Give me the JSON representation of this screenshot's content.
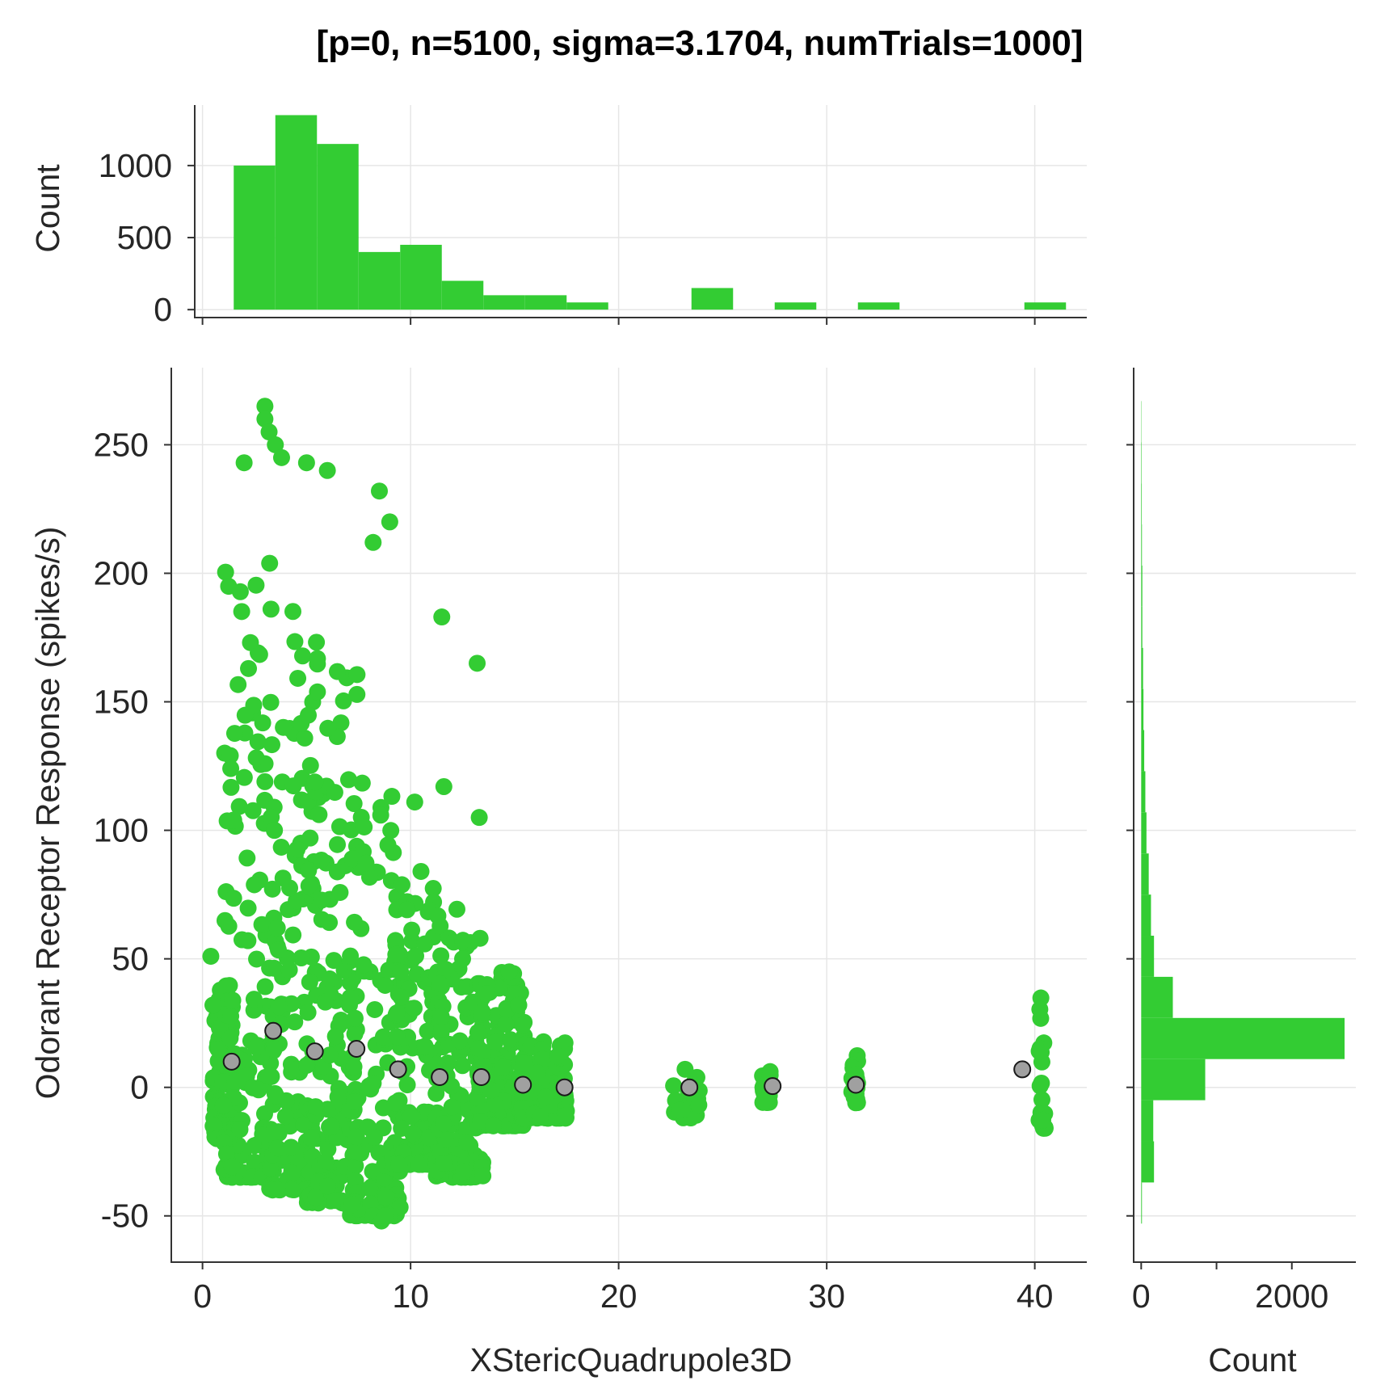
{
  "chart_data": {
    "type": "scatter",
    "title": "[p=0, n=5100, sigma=3.1704, numTrials=1000]",
    "xlabel": "XStericQuadrupole3D",
    "ylabel": "Odorant Receptor Response (spikes/s)",
    "xlim": [
      -1.5,
      42.5
    ],
    "ylim": [
      -68,
      280
    ],
    "xticks": [
      0,
      10,
      20,
      30,
      40
    ],
    "yticks": [
      -50,
      0,
      50,
      100,
      150,
      200,
      250
    ],
    "grid": true,
    "scatter_color": "#33cc33",
    "mean_marker_color": "#a0a0a0",
    "bin_means": {
      "x": [
        1.4,
        3.4,
        5.4,
        7.4,
        9.4,
        11.4,
        13.4,
        15.4,
        17.4,
        23.4,
        27.4,
        31.4,
        39.4
      ],
      "y": [
        10,
        22,
        14,
        15,
        7,
        4,
        4,
        1,
        0,
        0,
        0.5,
        1,
        7
      ]
    },
    "outliers": {
      "x": [
        3.0,
        3.0,
        3.2,
        3.5,
        3.8,
        2.0,
        5.0,
        6.0,
        8.5,
        9.0,
        8.2,
        11.5,
        13.2,
        11.6,
        13.3,
        1.5,
        0.4,
        0.5,
        10.2,
        10.5,
        12.5,
        15.2,
        8.6,
        8.8
      ],
      "y": [
        265,
        260,
        255,
        250,
        245,
        243,
        243,
        240,
        232,
        220,
        212,
        183,
        165,
        117,
        105,
        104,
        51,
        32,
        111,
        84,
        50,
        32,
        -52,
        -50
      ]
    },
    "clusters": [
      {
        "x": [
          0.5,
          1.5
        ],
        "y": [
          -20,
          40
        ]
      },
      {
        "x": [
          1.0,
          3.5
        ],
        "y": [
          -35,
          205
        ]
      },
      {
        "x": [
          3.2,
          5.5
        ],
        "y": [
          -40,
          190
        ]
      },
      {
        "x": [
          5.0,
          7.5
        ],
        "y": [
          -45,
          180
        ]
      },
      {
        "x": [
          7.0,
          9.5
        ],
        "y": [
          -50,
          120
        ]
      },
      {
        "x": [
          9.2,
          11.5
        ],
        "y": [
          -30,
          80
        ]
      },
      {
        "x": [
          11.2,
          13.5
        ],
        "y": [
          -35,
          70
        ]
      },
      {
        "x": [
          13.2,
          15.5
        ],
        "y": [
          -15,
          45
        ]
      },
      {
        "x": [
          15.2,
          17.5
        ],
        "y": [
          -12,
          18
        ]
      },
      {
        "x": [
          22.6,
          23.9
        ],
        "y": [
          -12,
          8
        ]
      },
      {
        "x": [
          26.9,
          27.3
        ],
        "y": [
          -6,
          7
        ]
      },
      {
        "x": [
          31.2,
          31.5
        ],
        "y": [
          -6,
          14
        ]
      },
      {
        "x": [
          40.2,
          40.5
        ],
        "y": [
          -16,
          40
        ]
      }
    ],
    "top_histogram": {
      "ylabel": "Count",
      "yticks": [
        0,
        500,
        1000
      ],
      "ylim": [
        -55,
        1420
      ],
      "bin_edges": [
        1.5,
        3.5,
        5.5,
        7.5,
        9.5,
        11.5,
        13.5,
        15.5,
        17.5,
        19.5,
        21.5,
        23.5,
        25.5,
        27.5,
        29.5,
        31.5,
        33.5,
        35.5,
        37.5,
        39.5,
        41.5
      ],
      "counts": [
        1000,
        1350,
        1150,
        400,
        450,
        200,
        100,
        100,
        50,
        0,
        0,
        150,
        0,
        50,
        0,
        50,
        0,
        0,
        0,
        50
      ]
    },
    "right_histogram": {
      "xlabel": "Count",
      "xticks": [
        0,
        2000
      ],
      "xlim": [
        -100,
        2850
      ],
      "bin_edges": [
        -53,
        -37,
        -21,
        -5,
        11,
        27,
        43,
        59,
        75,
        91,
        107,
        123,
        139,
        155,
        171,
        187,
        203,
        219,
        235,
        251,
        267
      ],
      "counts": [
        10,
        170,
        160,
        850,
        2700,
        420,
        170,
        130,
        100,
        70,
        55,
        40,
        30,
        25,
        15,
        15,
        10,
        8,
        6,
        4
      ]
    }
  }
}
